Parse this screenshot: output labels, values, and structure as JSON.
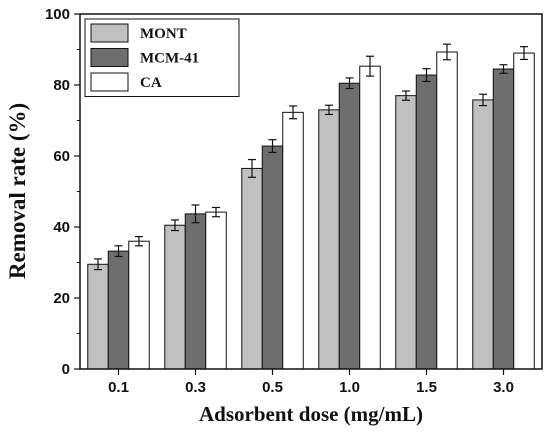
{
  "chart_data": {
    "type": "bar",
    "title": "",
    "xlabel": "Adsorbent dose (mg/mL)",
    "ylabel": "Removal rate (%)",
    "categories": [
      "0.1",
      "0.3",
      "0.5",
      "1.0",
      "1.5",
      "3.0"
    ],
    "ylim": [
      0,
      100
    ],
    "yticks": [
      "0",
      "20",
      "40",
      "60",
      "80",
      "100"
    ],
    "legend_position": "top-left",
    "grid": false,
    "series": [
      {
        "name": "MONT",
        "color": "#c0c0c0",
        "values": [
          29.5,
          40.5,
          56.5,
          73.0,
          77.0,
          75.8
        ],
        "errors": [
          1.5,
          1.5,
          2.5,
          1.3,
          1.3,
          1.6
        ]
      },
      {
        "name": "MCM-41",
        "color": "#6e6e6e",
        "values": [
          33.2,
          43.7,
          62.8,
          80.5,
          82.8,
          84.5
        ],
        "errors": [
          1.5,
          2.5,
          1.8,
          1.5,
          1.8,
          1.2
        ]
      },
      {
        "name": "CA",
        "color": "#ffffff",
        "values": [
          36.0,
          44.2,
          72.3,
          85.3,
          89.3,
          89.0
        ],
        "errors": [
          1.3,
          1.3,
          1.8,
          2.8,
          2.2,
          1.8
        ]
      }
    ]
  }
}
